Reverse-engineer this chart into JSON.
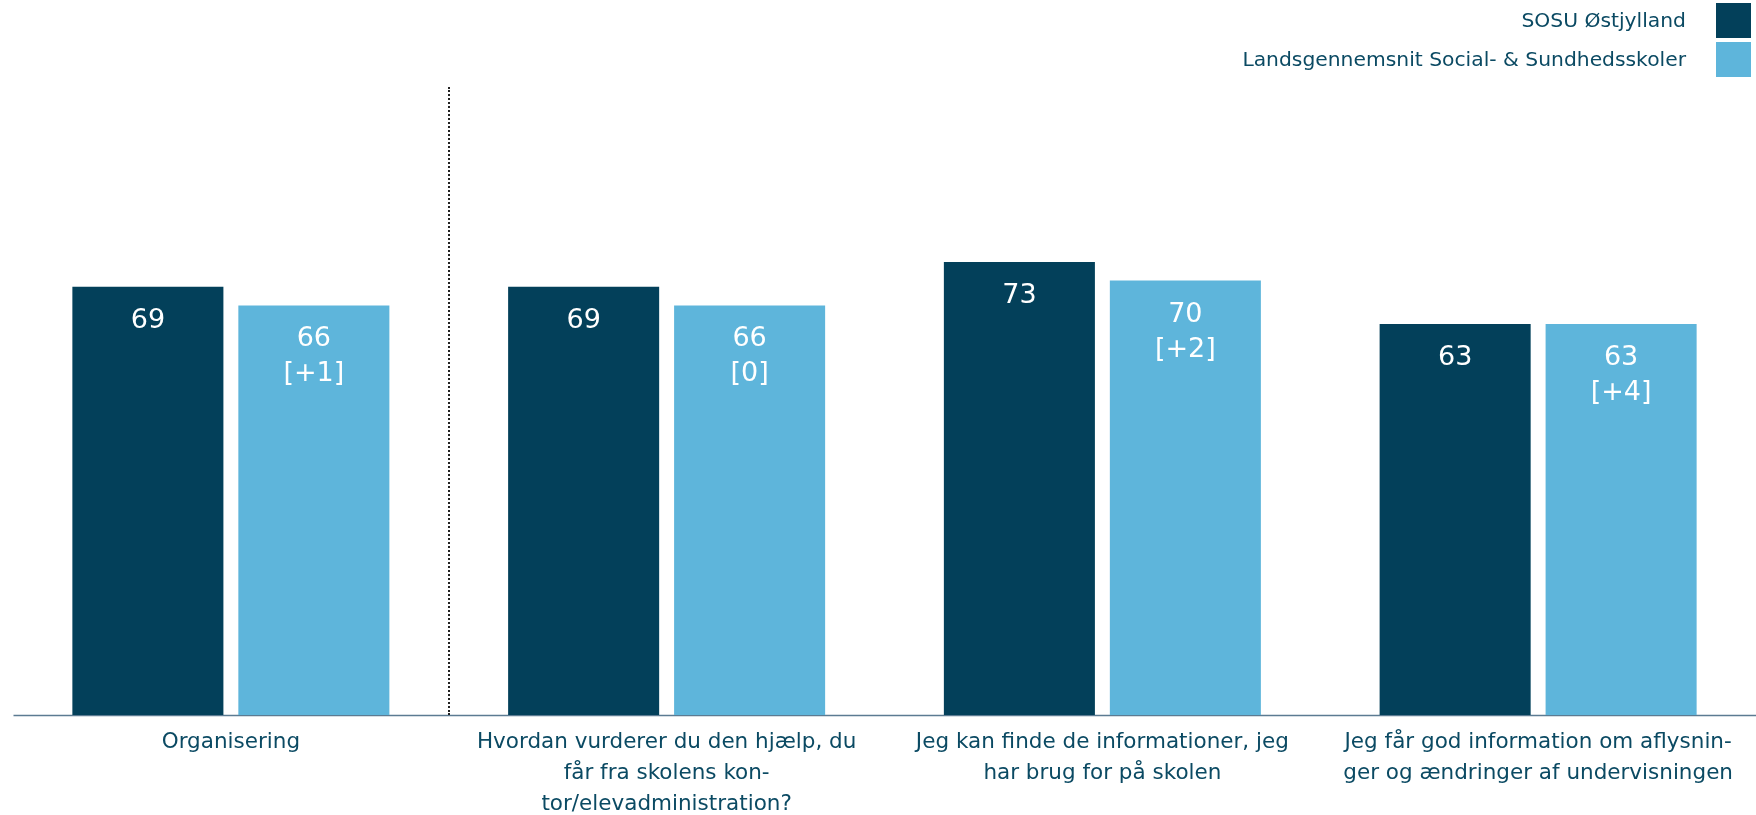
{
  "chart_data": {
    "type": "bar",
    "categories": [
      "Organisering",
      "Hvordan vurderer du den hjælp, du\nfår fra skolens kon-\ntor/elevadministration?",
      "Jeg kan finde de informationer, jeg\nhar brug for på skolen",
      "Jeg får god information om aflysnin-\nger og ændringer af undervisningen"
    ],
    "series": [
      {
        "name": "SOSU Østjylland",
        "color": "#03405a",
        "values": [
          69,
          69,
          73,
          63
        ],
        "value_labels": [
          "69",
          "69",
          "73",
          "63"
        ]
      },
      {
        "name": "Landsgennemsnit Social- & Sundhedsskoler",
        "color": "#5eb5db",
        "values": [
          66,
          66,
          70,
          63
        ],
        "value_labels": [
          "66\n[+1]",
          "66\n[0]",
          "70\n[+2]",
          "63\n[+4]"
        ]
      }
    ],
    "tick_labels": "x",
    "legend": "top right"
  }
}
